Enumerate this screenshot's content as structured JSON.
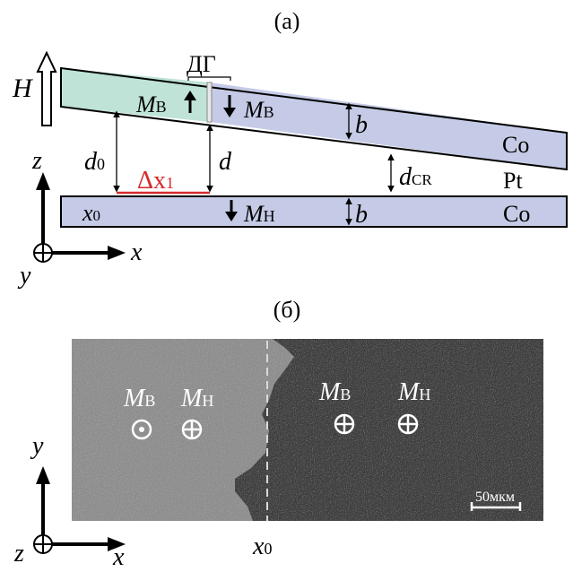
{
  "panel_a": {
    "label": "(а)",
    "field": "H",
    "domain_wall": "ДГ",
    "mag_upper": "M",
    "mag_upper_sub": "В",
    "mag_lower": "M",
    "mag_lower_sub": "Н",
    "thickness": "b",
    "d0": "d",
    "d0_sub": "0",
    "d": "d",
    "dcr": "d",
    "dcr_sub": "CR",
    "delta": "Δx",
    "delta_sub": "1",
    "x0": "x",
    "x0_sub": "0",
    "layer_top": "Co",
    "layer_mid": "Pt",
    "layer_bottom": "Co",
    "axis_z": "z",
    "axis_x": "x",
    "axis_y": "y"
  },
  "panel_b": {
    "label": "(б)",
    "left_upper": "M",
    "left_upper_sub": "В",
    "left_lower": "M",
    "left_lower_sub": "Н",
    "right_upper": "M",
    "right_upper_sub": "В",
    "right_lower": "M",
    "right_lower_sub": "Н",
    "scale": "50мкм",
    "x0": "x",
    "x0_sub": "0",
    "axis_z": "z",
    "axis_x": "x",
    "axis_y": "y"
  },
  "colors": {
    "co_layer": "#c5cbe6",
    "domain_up": "#bfe3d7",
    "accent_red": "#d42a2a",
    "line": "#000000",
    "image_light": "#8f8f8f",
    "image_dark": "#3f3f3f"
  }
}
